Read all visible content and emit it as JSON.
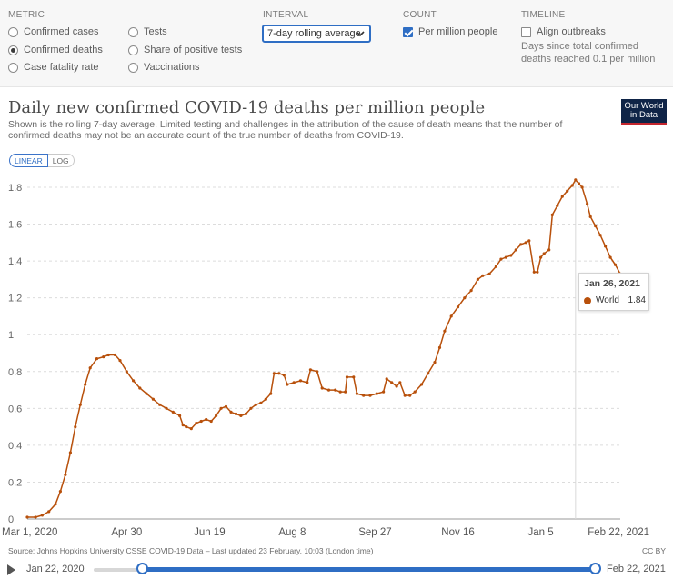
{
  "controls": {
    "metric_heading": "METRIC",
    "metric_options": [
      "Confirmed cases",
      "Confirmed deaths",
      "Case fatality rate",
      "Tests",
      "Share of positive tests",
      "Vaccinations"
    ],
    "metric_selected": "Confirmed deaths",
    "interval_heading": "INTERVAL",
    "interval_value": "7-day rolling average",
    "count_heading": "COUNT",
    "count_option": "Per million people",
    "count_checked": true,
    "timeline_heading": "TIMELINE",
    "timeline_option": "Align outbreaks",
    "timeline_checked": false,
    "timeline_note": "Days since total confirmed deaths reached 0.1 per million"
  },
  "header": {
    "title": "Daily new confirmed COVID-19 deaths per million people",
    "subtitle": "Shown is the rolling 7-day average. Limited testing and challenges in the attribution of the cause of death means that the number of confirmed deaths may not be an accurate count of the true number of deaths from COVID-19.",
    "logo_line1": "Our World",
    "logo_line2": "in Data"
  },
  "scale_toggle": {
    "linear": "LINEAR",
    "log": "LOG",
    "active": "LINEAR"
  },
  "tooltip": {
    "date": "Jan 26, 2021",
    "series": "World",
    "value": "1.84"
  },
  "footer": {
    "source": "Source: Johns Hopkins University CSSE COVID-19 Data – Last updated 23 February, 10:03 (London time)",
    "license": "CC BY"
  },
  "timeline": {
    "start": "Jan 22, 2020",
    "end": "Feb 22, 2021"
  },
  "colors": {
    "series": "#b8500b",
    "accent": "#2f6ec4"
  },
  "chart_data": {
    "type": "line",
    "title": "Daily new confirmed COVID-19 deaths per million people",
    "xlabel": "",
    "ylabel": "",
    "ylim": [
      0,
      1.9
    ],
    "yticks": [
      0,
      0.2,
      0.4,
      0.6,
      0.8,
      1,
      1.2,
      1.4,
      1.6,
      1.8
    ],
    "ytick_labels": [
      "0",
      "0.2",
      "0.4",
      "0.6",
      "0.8",
      "1",
      "1.2",
      "1.4",
      "1.6",
      "1.8"
    ],
    "xlim": [
      "2020-03-01",
      "2021-02-22"
    ],
    "xticks": [
      "2020-03-01",
      "2020-04-30",
      "2020-06-19",
      "2020-08-08",
      "2020-09-27",
      "2020-11-16",
      "2021-01-05",
      "2021-02-22"
    ],
    "xtick_labels": [
      "Mar 1, 2020",
      "Apr 30",
      "Jun 19",
      "Aug 8",
      "Sep 27",
      "Nov 16",
      "Jan 5",
      "Feb 22, 2021"
    ],
    "grid": "horizontal",
    "series": [
      {
        "name": "World",
        "points": [
          [
            "2020-03-01",
            0.01
          ],
          [
            "2020-03-06",
            0.01
          ],
          [
            "2020-03-10",
            0.02
          ],
          [
            "2020-03-14",
            0.04
          ],
          [
            "2020-03-18",
            0.08
          ],
          [
            "2020-03-21",
            0.15
          ],
          [
            "2020-03-24",
            0.24
          ],
          [
            "2020-03-27",
            0.36
          ],
          [
            "2020-03-30",
            0.5
          ],
          [
            "2020-04-02",
            0.62
          ],
          [
            "2020-04-05",
            0.73
          ],
          [
            "2020-04-08",
            0.82
          ],
          [
            "2020-04-12",
            0.87
          ],
          [
            "2020-04-16",
            0.88
          ],
          [
            "2020-04-19",
            0.89
          ],
          [
            "2020-04-23",
            0.89
          ],
          [
            "2020-04-26",
            0.86
          ],
          [
            "2020-04-30",
            0.8
          ],
          [
            "2020-05-04",
            0.75
          ],
          [
            "2020-05-08",
            0.71
          ],
          [
            "2020-05-12",
            0.68
          ],
          [
            "2020-05-16",
            0.65
          ],
          [
            "2020-05-20",
            0.62
          ],
          [
            "2020-05-24",
            0.6
          ],
          [
            "2020-05-28",
            0.58
          ],
          [
            "2020-06-01",
            0.56
          ],
          [
            "2020-06-03",
            0.51
          ],
          [
            "2020-06-05",
            0.5
          ],
          [
            "2020-06-08",
            0.49
          ],
          [
            "2020-06-11",
            0.52
          ],
          [
            "2020-06-14",
            0.53
          ],
          [
            "2020-06-17",
            0.54
          ],
          [
            "2020-06-20",
            0.53
          ],
          [
            "2020-06-23",
            0.56
          ],
          [
            "2020-06-26",
            0.6
          ],
          [
            "2020-06-29",
            0.61
          ],
          [
            "2020-07-02",
            0.58
          ],
          [
            "2020-07-05",
            0.57
          ],
          [
            "2020-07-08",
            0.56
          ],
          [
            "2020-07-11",
            0.57
          ],
          [
            "2020-07-14",
            0.6
          ],
          [
            "2020-07-17",
            0.62
          ],
          [
            "2020-07-20",
            0.63
          ],
          [
            "2020-07-23",
            0.65
          ],
          [
            "2020-07-26",
            0.68
          ],
          [
            "2020-07-28",
            0.79
          ],
          [
            "2020-07-31",
            0.79
          ],
          [
            "2020-08-03",
            0.78
          ],
          [
            "2020-08-05",
            0.73
          ],
          [
            "2020-08-09",
            0.74
          ],
          [
            "2020-08-13",
            0.75
          ],
          [
            "2020-08-17",
            0.74
          ],
          [
            "2020-08-19",
            0.81
          ],
          [
            "2020-08-23",
            0.8
          ],
          [
            "2020-08-26",
            0.71
          ],
          [
            "2020-08-30",
            0.7
          ],
          [
            "2020-09-03",
            0.7
          ],
          [
            "2020-09-06",
            0.69
          ],
          [
            "2020-09-09",
            0.69
          ],
          [
            "2020-09-10",
            0.77
          ],
          [
            "2020-09-14",
            0.77
          ],
          [
            "2020-09-16",
            0.68
          ],
          [
            "2020-09-20",
            0.67
          ],
          [
            "2020-09-24",
            0.67
          ],
          [
            "2020-09-28",
            0.68
          ],
          [
            "2020-10-02",
            0.69
          ],
          [
            "2020-10-04",
            0.76
          ],
          [
            "2020-10-07",
            0.74
          ],
          [
            "2020-10-10",
            0.72
          ],
          [
            "2020-10-12",
            0.74
          ],
          [
            "2020-10-15",
            0.67
          ],
          [
            "2020-10-18",
            0.67
          ],
          [
            "2020-10-21",
            0.69
          ],
          [
            "2020-10-25",
            0.73
          ],
          [
            "2020-10-29",
            0.79
          ],
          [
            "2020-11-02",
            0.85
          ],
          [
            "2020-11-05",
            0.93
          ],
          [
            "2020-11-08",
            1.02
          ],
          [
            "2020-11-12",
            1.1
          ],
          [
            "2020-11-16",
            1.15
          ],
          [
            "2020-11-20",
            1.2
          ],
          [
            "2020-11-24",
            1.24
          ],
          [
            "2020-11-28",
            1.3
          ],
          [
            "2020-12-01",
            1.32
          ],
          [
            "2020-12-05",
            1.33
          ],
          [
            "2020-12-09",
            1.37
          ],
          [
            "2020-12-12",
            1.41
          ],
          [
            "2020-12-15",
            1.42
          ],
          [
            "2020-12-18",
            1.43
          ],
          [
            "2020-12-21",
            1.46
          ],
          [
            "2020-12-24",
            1.49
          ],
          [
            "2020-12-27",
            1.5
          ],
          [
            "2020-12-29",
            1.51
          ],
          [
            "2021-01-01",
            1.34
          ],
          [
            "2021-01-03",
            1.34
          ],
          [
            "2021-01-05",
            1.42
          ],
          [
            "2021-01-07",
            1.44
          ],
          [
            "2021-01-10",
            1.46
          ],
          [
            "2021-01-12",
            1.65
          ],
          [
            "2021-01-15",
            1.7
          ],
          [
            "2021-01-18",
            1.75
          ],
          [
            "2021-01-21",
            1.78
          ],
          [
            "2021-01-24",
            1.81
          ],
          [
            "2021-01-26",
            1.84
          ],
          [
            "2021-01-28",
            1.82
          ],
          [
            "2021-01-30",
            1.8
          ],
          [
            "2021-02-02",
            1.71
          ],
          [
            "2021-02-04",
            1.64
          ],
          [
            "2021-02-07",
            1.59
          ],
          [
            "2021-02-10",
            1.54
          ],
          [
            "2021-02-13",
            1.48
          ],
          [
            "2021-02-16",
            1.42
          ],
          [
            "2021-02-19",
            1.38
          ],
          [
            "2021-02-22",
            1.33
          ]
        ]
      }
    ]
  }
}
